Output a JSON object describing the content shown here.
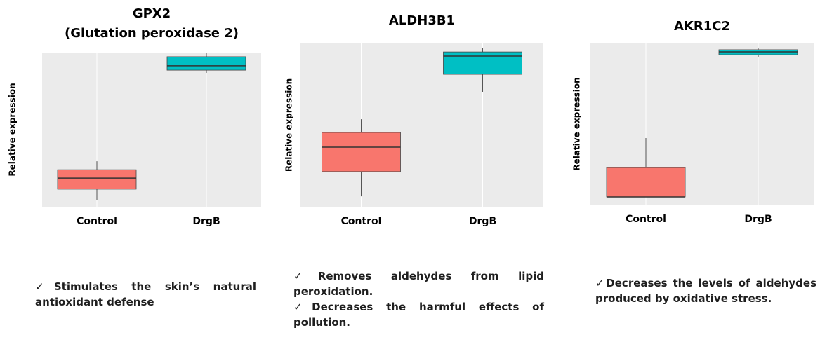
{
  "chart_data": [
    {
      "type": "box",
      "title": "GPX2",
      "subtitle": "(Glutation peroxidase 2)",
      "ylabel": "Relative expression",
      "categories": [
        "Control",
        "DrgB"
      ],
      "colors": [
        "#f8766d",
        "#00bfc4"
      ],
      "ylim": [
        0,
        100
      ],
      "boxes": [
        {
          "low": 4.5,
          "q1": 11.4,
          "median": 18.6,
          "q3": 24,
          "high": 29.5
        },
        {
          "low": 86.8,
          "q1": 88.6,
          "median": 91.4,
          "q3": 97.3,
          "high": 100
        }
      ]
    },
    {
      "type": "box",
      "title": "ALDH3B1",
      "ylabel": "Relative expression",
      "categories": [
        "Control",
        "DrgB"
      ],
      "colors": [
        "#f8766d",
        "#00bfc4"
      ],
      "ylim": [
        0,
        100
      ],
      "boxes": [
        {
          "low": 6.4,
          "q1": 21.5,
          "median": 36.5,
          "q3": 45.5,
          "high": 53.6
        },
        {
          "low": 70.4,
          "q1": 81.1,
          "median": 92.3,
          "q3": 94.8,
          "high": 97
        }
      ]
    },
    {
      "type": "box",
      "title": "AKR1C2",
      "ylabel": "Relative expression",
      "categories": [
        "Control",
        "DrgB"
      ],
      "colors": [
        "#f8766d",
        "#00bfc4"
      ],
      "ylim": [
        0,
        100
      ],
      "boxes": [
        {
          "low": 4.8,
          "q1": 4.8,
          "median": 4.8,
          "q3": 23,
          "high": 41.3
        },
        {
          "low": 91.7,
          "q1": 93,
          "median": 94.8,
          "q3": 96.1,
          "high": 97
        }
      ]
    }
  ],
  "descriptions": [
    [
      "✓Stimulates the skin’s natural antioxidant defense"
    ],
    [
      "✓Removes aldehydes from lipid peroxidation.",
      "✓Decreases the harmful effects of pollution."
    ],
    [
      "✓Decreases the levels of aldehydes produced by oxidative stress."
    ]
  ]
}
